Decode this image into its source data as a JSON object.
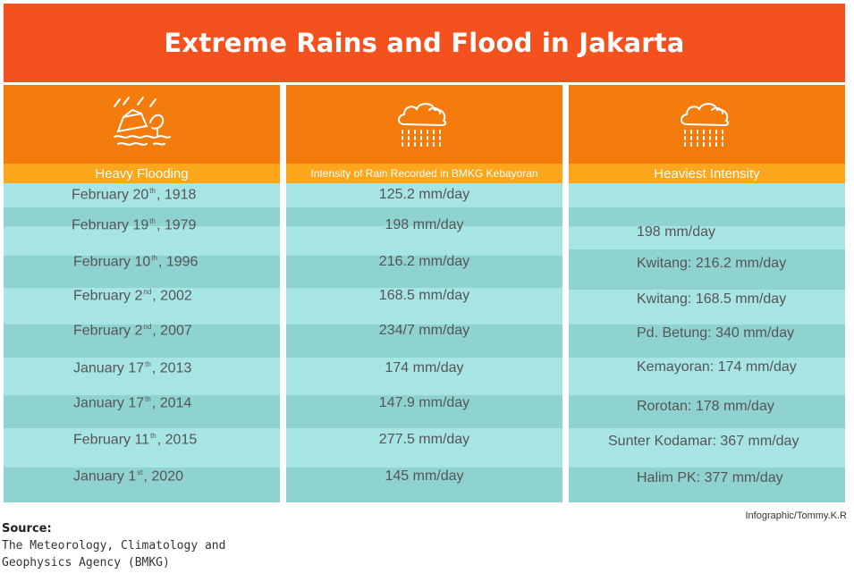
{
  "title": "Extreme Rains and Flood in Jakarta",
  "columns": {
    "flood": {
      "label": "Heavy Flooding",
      "icon": "flood-icon"
    },
    "rain": {
      "label": "Intensity of Rain Recorded in BMKG Kebayoran",
      "icon": "rain-cloud-icon"
    },
    "max": {
      "label": "Heaviest Intensity",
      "icon": "rain-cloud-icon"
    }
  },
  "chart_data": {
    "type": "table",
    "title": "Extreme Rains and Flood in Jakarta",
    "columns": [
      "Heavy Flooding",
      "Intensity of Rain Recorded in BMKG Kebayoran",
      "Heaviest Intensity"
    ],
    "rows": [
      {
        "month": "February 20",
        "suffix": "th",
        "year": ", 1918",
        "rain": "125.2 mm/day",
        "max": ""
      },
      {
        "month": "February 19",
        "suffix": "th",
        "year": ", 1979",
        "rain": "198 mm/day",
        "max": "198 mm/day"
      },
      {
        "month": "February 10",
        "suffix": "th",
        "year": ", 1996",
        "rain": "216.2 mm/day",
        "max": "Kwitang: 216.2 mm/day"
      },
      {
        "month": "February 2",
        "suffix": "nd",
        "year": ", 2002",
        "rain": "168.5 mm/day",
        "max": "Kwitang: 168.5 mm/day"
      },
      {
        "month": "February 2",
        "suffix": "nd",
        "year": ", 2007",
        "rain": "234/7 mm/day",
        "max": "Pd. Betung: 340 mm/day"
      },
      {
        "month": "January 17",
        "suffix": "th",
        "year": ", 2013",
        "rain": "174 mm/day",
        "max": "Kemayoran: 174 mm/day"
      },
      {
        "month": "January 17",
        "suffix": "th",
        "year": ", 2014",
        "rain": "147.9 mm/day",
        "max": "Rorotan: 178 mm/day"
      },
      {
        "month": "February 11",
        "suffix": "th",
        "year": ", 2015",
        "rain": "277.5 mm/day",
        "max": "Sunter Kodamar: 367 mm/day"
      },
      {
        "month": "January 1",
        "suffix": "st",
        "year": ", 2020",
        "rain": "145 mm/day",
        "max": "Halim PK: 377 mm/day"
      }
    ]
  },
  "credit": "Infographic/Tommy.K.R",
  "source": {
    "label": "Source:",
    "line1": "The Meteorology, Climatology and",
    "line2": "Geophysics Agency (BMKG)"
  },
  "colors": {
    "title_bg": "#f4511e",
    "header_bg": "#f47c0c",
    "label_bg": "#fba61b",
    "row_light": "#a7e4e4",
    "row_dark": "#8fd3d1"
  }
}
